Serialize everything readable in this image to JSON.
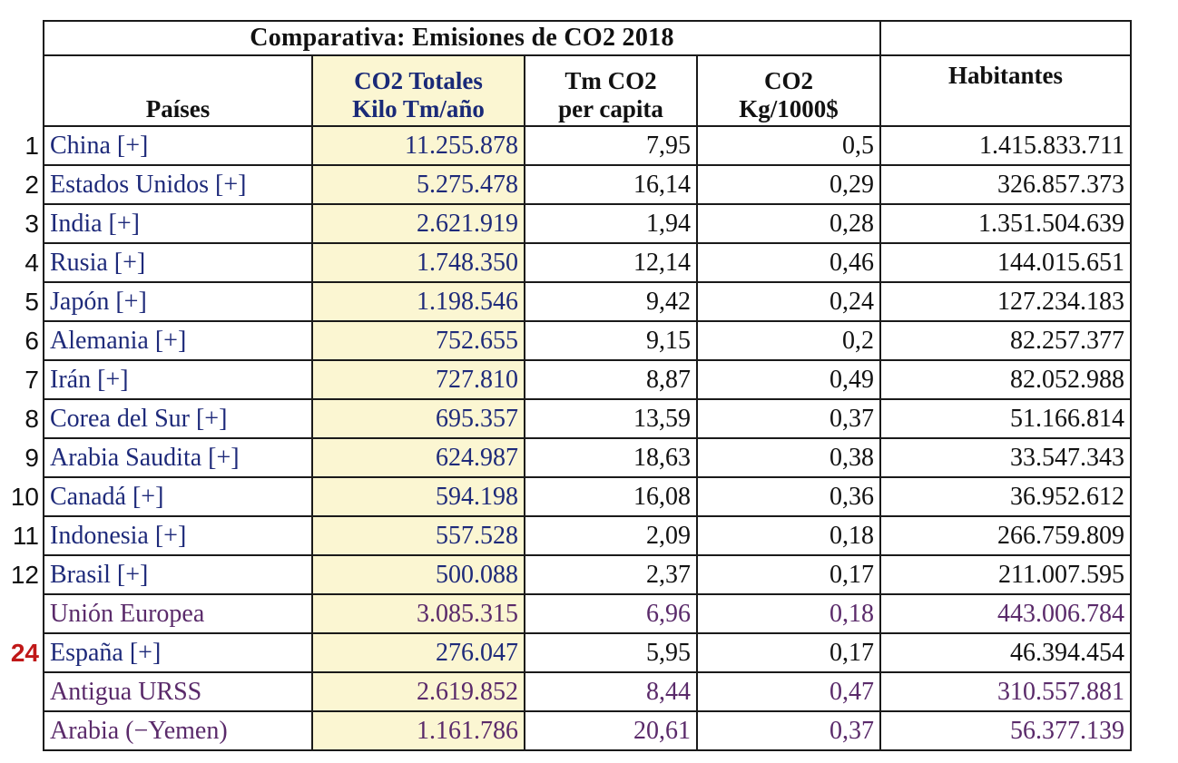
{
  "table": {
    "title": "Comparativa: Emisiones de CO2 2018",
    "headers": {
      "country": "Países",
      "total_line1": "CO2 Totales",
      "total_line2": "Kilo Tm/año",
      "percapita_line1": "Tm CO2",
      "percapita_line2": "per capita",
      "intensity_line1": "CO2",
      "intensity_line2": "Kg/1000$",
      "population": "Habitantes"
    },
    "rows": [
      {
        "rank": "1",
        "country": "China [+]",
        "total": "11.255.878",
        "percapita": "7,95",
        "intensity": "0,5",
        "population": "1.415.833.711"
      },
      {
        "rank": "2",
        "country": "Estados Unidos [+]",
        "total": "5.275.478",
        "percapita": "16,14",
        "intensity": "0,29",
        "population": "326.857.373"
      },
      {
        "rank": "3",
        "country": "India [+]",
        "total": "2.621.919",
        "percapita": "1,94",
        "intensity": "0,28",
        "population": "1.351.504.639"
      },
      {
        "rank": "4",
        "country": "Rusia [+]",
        "total": "1.748.350",
        "percapita": "12,14",
        "intensity": "0,46",
        "population": "144.015.651"
      },
      {
        "rank": "5",
        "country": "Japón [+]",
        "total": "1.198.546",
        "percapita": "9,42",
        "intensity": "0,24",
        "population": "127.234.183"
      },
      {
        "rank": "6",
        "country": "Alemania [+]",
        "total": "752.655",
        "percapita": "9,15",
        "intensity": "0,2",
        "population": "82.257.377"
      },
      {
        "rank": "7",
        "country": "Irán [+]",
        "total": "727.810",
        "percapita": "8,87",
        "intensity": "0,49",
        "population": "82.052.988"
      },
      {
        "rank": "8",
        "country": "Corea del Sur [+]",
        "total": "695.357",
        "percapita": "13,59",
        "intensity": "0,37",
        "population": "51.166.814"
      },
      {
        "rank": "9",
        "country": "Arabia Saudita [+]",
        "total": "624.987",
        "percapita": "18,63",
        "intensity": "0,38",
        "population": "33.547.343"
      },
      {
        "rank": "10",
        "country": "Canadá [+]",
        "total": "594.198",
        "percapita": "16,08",
        "intensity": "0,36",
        "population": "36.952.612"
      },
      {
        "rank": "11",
        "country": "Indonesia [+]",
        "total": "557.528",
        "percapita": "2,09",
        "intensity": "0,18",
        "population": "266.759.809"
      },
      {
        "rank": "12",
        "country": "Brasil [+]",
        "total": "500.088",
        "percapita": "2,37",
        "intensity": "0,17",
        "population": "211.007.595"
      },
      {
        "rank": "",
        "country": "Unión Europea",
        "total": "3.085.315",
        "percapita": "6,96",
        "intensity": "0,18",
        "population": "443.006.784"
      },
      {
        "rank": "24",
        "country": "España [+]",
        "total": "276.047",
        "percapita": "5,95",
        "intensity": "0,17",
        "population": "46.394.454"
      },
      {
        "rank": "",
        "country": "Antigua URSS",
        "total": "2.619.852",
        "percapita": "8,44",
        "intensity": "0,47",
        "population": "310.557.881"
      },
      {
        "rank": "",
        "country": "Arabia (−Yemen)",
        "total": "1.161.786",
        "percapita": "20,61",
        "intensity": "0,37",
        "population": "56.377.139"
      }
    ]
  },
  "colors": {
    "link_blue": "#1e2a7a",
    "aggregate_purple": "#5a2a6a",
    "highlight_column": "#fbf6d2",
    "rank_highlight": "#c01818"
  }
}
